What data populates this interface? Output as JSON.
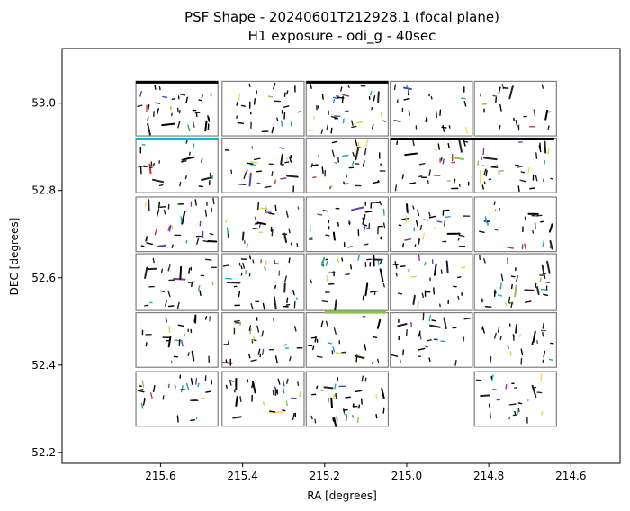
{
  "chart_data": {
    "type": "scatter",
    "title": [
      "PSF Shape - 20240601T212928.1 (focal plane)",
      "H1 exposure - odi_g - 40sec"
    ],
    "xlabel": "RA [degrees]",
    "ylabel": "DEC [degrees]",
    "xlim": [
      215.84,
      214.48
    ],
    "ylim": [
      52.175,
      53.125
    ],
    "xticks": [
      215.6,
      215.4,
      215.2,
      215.0,
      214.8,
      214.6
    ],
    "xtick_labels": [
      "215.6",
      "215.4",
      "215.2",
      "215.0",
      "214.8",
      "214.6"
    ],
    "yticks": [
      52.2,
      52.4,
      52.6,
      52.8,
      53.0
    ],
    "ytick_labels": [
      "52.2",
      "52.4",
      "52.6",
      "52.8",
      "53.0"
    ],
    "grid": false,
    "ota_grid": {
      "columns_ra": [
        [
          215.66,
          215.46
        ],
        [
          215.45,
          215.25
        ],
        [
          215.245,
          215.045
        ],
        [
          215.04,
          214.84
        ],
        [
          214.835,
          214.635
        ]
      ],
      "rows_dec": [
        [
          52.925,
          53.05
        ],
        [
          52.795,
          52.92
        ],
        [
          52.66,
          52.785
        ],
        [
          52.525,
          52.655
        ],
        [
          52.395,
          52.52
        ],
        [
          52.26,
          52.385
        ]
      ],
      "missing": [
        [
          5,
          3
        ]
      ]
    },
    "whisker_palette": [
      "#000000",
      "#222222",
      "#00bcd4",
      "#1f9bd4",
      "#3f51b5",
      "#673ab7",
      "#9c27b0",
      "#8bc34a",
      "#cddc39",
      "#ffd54f",
      "#d32f2f",
      "#26a69a"
    ]
  }
}
